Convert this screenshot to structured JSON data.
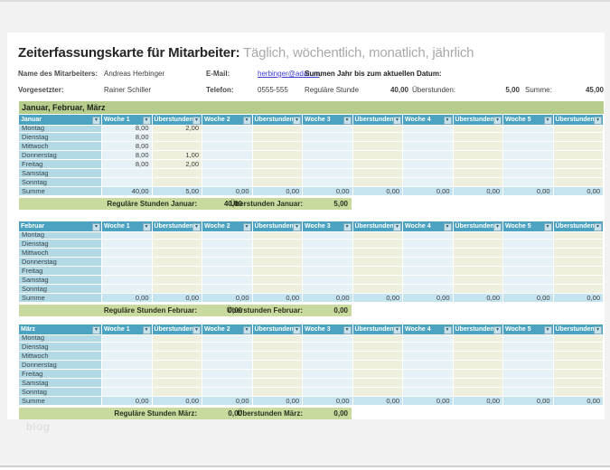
{
  "page": {
    "title": "Zeiterfassungskarte für Mitarbeiter:",
    "subtitle": " Täglich, wöchentlich, monatlich, jährlich",
    "watermark": "blog"
  },
  "info": {
    "name_label": "Name des Mitarbeiters:",
    "name_value": "Andreas Herbinger",
    "email_label": "E-Mail:",
    "email_value": "herbinger@adatum",
    "email_suffix": ",",
    "ytd_label": "Summen Jahr bis zum aktuellen Datum:",
    "supervisor_label": "Vorgesetzter:",
    "supervisor_value": "Rainer Schiller",
    "phone_label": "Telefon:",
    "phone_value": "0555-555",
    "regular_label": "Reguläre Stunde",
    "regular_value": "40,00",
    "overtime_label": "Überstunden:",
    "overtime_value": "5,00",
    "total_label": "Summe:",
    "total_value": "45,00"
  },
  "section_band": "Januar, Februar, März",
  "columns": [
    "Woche 1",
    "Überstunden",
    "Woche 2",
    "Überstunden2",
    "Woche 3",
    "Überstunden3",
    "Woche 4",
    "Überstunden4",
    "Woche 5",
    "Überstunden5"
  ],
  "tables": [
    {
      "month": "Januar",
      "rows": [
        {
          "day": "Montag",
          "values": [
            "8,00",
            "2,00",
            "",
            "",
            "",
            "",
            "",
            "",
            "",
            ""
          ]
        },
        {
          "day": "Dienstag",
          "values": [
            "8,00",
            "",
            "",
            "",
            "",
            "",
            "",
            "",
            "",
            ""
          ]
        },
        {
          "day": "Mittwoch",
          "values": [
            "8,00",
            "",
            "",
            "",
            "",
            "",
            "",
            "",
            "",
            ""
          ]
        },
        {
          "day": "Donnerstag",
          "values": [
            "8,00",
            "1,00",
            "",
            "",
            "",
            "",
            "",
            "",
            "",
            ""
          ]
        },
        {
          "day": "Freitag",
          "values": [
            "8,00",
            "2,00",
            "",
            "",
            "",
            "",
            "",
            "",
            "",
            ""
          ]
        },
        {
          "day": "Samstag",
          "values": [
            "",
            "",
            "",
            "",
            "",
            "",
            "",
            "",
            "",
            ""
          ]
        },
        {
          "day": "Sonntag",
          "values": [
            "",
            "",
            "",
            "",
            "",
            "",
            "",
            "",
            "",
            ""
          ]
        },
        {
          "day": "Summe",
          "values": [
            "40,00",
            "5,00",
            "0,00",
            "0,00",
            "0,00",
            "0,00",
            "0,00",
            "0,00",
            "0,00",
            "0,00"
          ]
        }
      ],
      "footer": {
        "regular_label": "Reguläre Stunden Januar:",
        "regular_value": "40,00",
        "overtime_label": "Überstunden Januar:",
        "overtime_value": "5,00"
      }
    },
    {
      "month": "Februar",
      "rows": [
        {
          "day": "Montag",
          "values": [
            "",
            "",
            "",
            "",
            "",
            "",
            "",
            "",
            "",
            ""
          ]
        },
        {
          "day": "Dienstag",
          "values": [
            "",
            "",
            "",
            "",
            "",
            "",
            "",
            "",
            "",
            ""
          ]
        },
        {
          "day": "Mittwoch",
          "values": [
            "",
            "",
            "",
            "",
            "",
            "",
            "",
            "",
            "",
            ""
          ]
        },
        {
          "day": "Donnerstag",
          "values": [
            "",
            "",
            "",
            "",
            "",
            "",
            "",
            "",
            "",
            ""
          ]
        },
        {
          "day": "Freitag",
          "values": [
            "",
            "",
            "",
            "",
            "",
            "",
            "",
            "",
            "",
            ""
          ]
        },
        {
          "day": "Samstag",
          "values": [
            "",
            "",
            "",
            "",
            "",
            "",
            "",
            "",
            "",
            ""
          ]
        },
        {
          "day": "Sonntag",
          "values": [
            "",
            "",
            "",
            "",
            "",
            "",
            "",
            "",
            "",
            ""
          ]
        },
        {
          "day": "Summe",
          "values": [
            "0,00",
            "0,00",
            "0,00",
            "0,00",
            "0,00",
            "0,00",
            "0,00",
            "0,00",
            "0,00",
            "0,00"
          ]
        }
      ],
      "footer": {
        "regular_label": "Reguläre Stunden Februar:",
        "regular_value": "0,00",
        "overtime_label": "Überstunden Februar:",
        "overtime_value": "0,00"
      }
    },
    {
      "month": "März",
      "rows": [
        {
          "day": "Montag",
          "values": [
            "",
            "",
            "",
            "",
            "",
            "",
            "",
            "",
            "",
            ""
          ]
        },
        {
          "day": "Dienstag",
          "values": [
            "",
            "",
            "",
            "",
            "",
            "",
            "",
            "",
            "",
            ""
          ]
        },
        {
          "day": "Mittwoch",
          "values": [
            "",
            "",
            "",
            "",
            "",
            "",
            "",
            "",
            "",
            ""
          ]
        },
        {
          "day": "Donnerstag",
          "values": [
            "",
            "",
            "",
            "",
            "",
            "",
            "",
            "",
            "",
            ""
          ]
        },
        {
          "day": "Freitag",
          "values": [
            "",
            "",
            "",
            "",
            "",
            "",
            "",
            "",
            "",
            ""
          ]
        },
        {
          "day": "Samstag",
          "values": [
            "",
            "",
            "",
            "",
            "",
            "",
            "",
            "",
            "",
            ""
          ]
        },
        {
          "day": "Sonntag",
          "values": [
            "",
            "",
            "",
            "",
            "",
            "",
            "",
            "",
            "",
            ""
          ]
        },
        {
          "day": "Summe",
          "values": [
            "0,00",
            "0,00",
            "0,00",
            "0,00",
            "0,00",
            "0,00",
            "0,00",
            "0,00",
            "0,00",
            "0,00"
          ]
        }
      ],
      "footer": {
        "regular_label": "Reguläre Stunden März:",
        "regular_value": "0,00",
        "overtime_label": "Überstunden März:",
        "overtime_value": "0,00"
      }
    }
  ],
  "icons": {
    "filter_dropdown": "▾"
  },
  "colors": {
    "header_blue": "#4ba3c1",
    "day_cell_blue": "#b3d9e5",
    "week_cell": "#e7f2f7",
    "overtime_cell": "#eef0dd",
    "summe_cell": "#c6e3f0",
    "month_band_green": "#b6cc8c",
    "footer_band_green": "#c9da9f",
    "link_blue": "#3b3bd6"
  }
}
